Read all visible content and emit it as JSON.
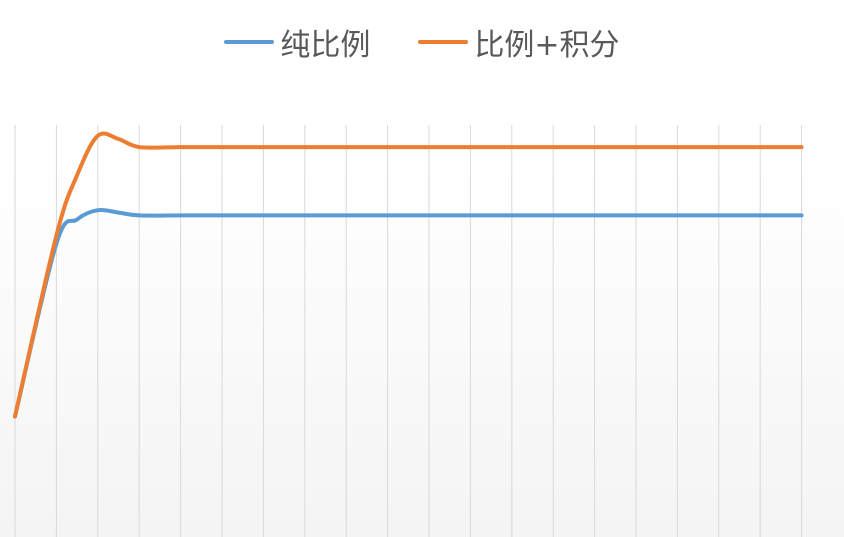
{
  "chart_data": {
    "type": "line",
    "title": "",
    "xlabel": "",
    "ylabel": "",
    "x": [
      0,
      1,
      1.5,
      2,
      2.5,
      3,
      4,
      5,
      6,
      7,
      8,
      9,
      10,
      11,
      12,
      13,
      14,
      15,
      16,
      17,
      18,
      19
    ],
    "ylim": [
      0,
      1.05
    ],
    "grid": {
      "vertical": true,
      "horizontal": false
    },
    "legend_position": "top-center",
    "series": [
      {
        "name": "纯比例",
        "color": "#5b9bd5",
        "values": [
          0.3,
          0.73,
          0.79,
          0.813,
          0.807,
          0.8,
          0.8,
          0.8,
          0.8,
          0.8,
          0.8,
          0.8,
          0.8,
          0.8,
          0.8,
          0.8,
          0.8,
          0.8,
          0.8,
          0.8,
          0.8,
          0.8
        ]
      },
      {
        "name": "比例+积分",
        "color": "#ed7d31",
        "values": [
          0.3,
          0.75,
          0.9,
          0.998,
          0.99,
          0.97,
          0.97,
          0.97,
          0.97,
          0.97,
          0.97,
          0.97,
          0.97,
          0.97,
          0.97,
          0.97,
          0.97,
          0.97,
          0.97,
          0.97,
          0.97,
          0.97
        ]
      }
    ]
  }
}
